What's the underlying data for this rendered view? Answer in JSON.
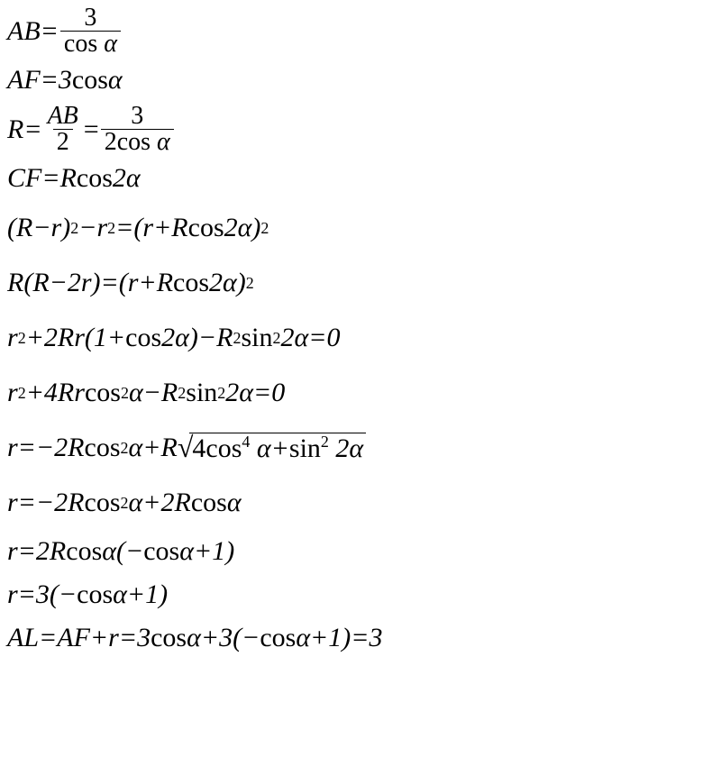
{
  "background_color": "#ffffff",
  "text_color": "#000000",
  "font_family": "Times New Roman",
  "font_size_pt": 30,
  "font_style": "italic",
  "line_spacing": 1.0,
  "equations": {
    "l1_lhs": "AB=",
    "l1_num": "3",
    "l1_den_cos": "cos ",
    "l1_den_alpha": "α",
    "l2_lhs": "AF=3 ",
    "l2_cos": "cos ",
    "l2_alpha": "α",
    "l3_lhs": "R=",
    "l3_f1_num": "AB",
    "l3_f1_den": "2",
    "l3_eq": "=",
    "l3_f2_num": "3",
    "l3_f2_den_2cos": "2cos ",
    "l3_f2_den_alpha": "α",
    "l4_lhs": "CF=R",
    "l4_cos": "cos ",
    "l4_2alpha": "2α",
    "l5_p1": "(R−r)",
    "l5_p2": "−r",
    "l5_p3": "=(r+R",
    "l5_cos": "cos ",
    "l5_p4": "2α)",
    "l6_p1": "R(R−2r)=(r+R",
    "l6_cos": "cos ",
    "l6_p2": "2α)",
    "l7_p1": "r",
    "l7_p2": "+2Rr(1+",
    "l7_cos": "cos ",
    "l7_p3": "2α)−R",
    "l7_sin": "sin",
    "l7_p4": " 2α=0",
    "l8_p1": "r",
    "l8_p2": "+4Rr",
    "l8_cos": "cos",
    "l8_p3": "α−R",
    "l8_sin": "sin",
    "l8_p4": " 2α=0",
    "l9_p1": "r=−2R",
    "l9_cos1": "cos",
    "l9_p2": " α+R",
    "l9_sqrt_p1": "4",
    "l9_sqrt_cos": "cos",
    "l9_sqrt_p2": " α+",
    "l9_sqrt_sin": "sin",
    "l9_sqrt_p3": " 2α",
    "l10_p1": "r=−2R",
    "l10_cos1": "cos",
    "l10_p2": " α+2R",
    "l10_cos2": "cos ",
    "l10_p3": "α",
    "l11_p1": "r=2R",
    "l11_cos1": "cos ",
    "l11_p2": "α(−",
    "l11_cos2": "cos ",
    "l11_p3": "α+1)",
    "l12_p1": "r=3(−",
    "l12_cos": "cos ",
    "l12_p2": "α+1)",
    "l13_p1": "AL=AF+r=3 ",
    "l13_cos1": "cos ",
    "l13_p2": "α+3(−",
    "l13_cos2": "cos ",
    "l13_p3": "α+1)=3",
    "exp2": "2",
    "exp4": "4"
  }
}
